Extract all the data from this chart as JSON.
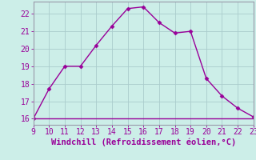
{
  "x": [
    9,
    10,
    11,
    12,
    13,
    14,
    15,
    16,
    17,
    18,
    19,
    20,
    21,
    22,
    23
  ],
  "y": [
    16.0,
    17.7,
    19.0,
    19.0,
    20.2,
    21.3,
    22.3,
    22.4,
    21.5,
    20.9,
    21.0,
    18.3,
    17.3,
    16.6,
    16.1
  ],
  "y_flat": [
    16.0,
    16.0,
    16.0,
    16.0,
    16.0,
    16.0,
    16.0,
    16.0,
    16.0,
    16.0,
    16.0,
    16.0,
    16.0,
    16.0,
    16.0
  ],
  "line_color": "#990099",
  "background_color": "#cceee8",
  "grid_color": "#aacccc",
  "xlabel": "Windchill (Refroidissement éolien,°C)",
  "xlim": [
    9,
    23
  ],
  "ylim": [
    15.65,
    22.7
  ],
  "yticks": [
    16,
    17,
    18,
    19,
    20,
    21,
    22
  ],
  "xticks": [
    9,
    10,
    11,
    12,
    13,
    14,
    15,
    16,
    17,
    18,
    19,
    20,
    21,
    22,
    23
  ],
  "marker": "D",
  "markersize": 2.5,
  "linewidth": 1.0,
  "xlabel_fontsize": 7.5,
  "tick_fontsize": 7,
  "tick_color": "#990099",
  "label_color": "#990099",
  "spine_color": "#9999aa"
}
